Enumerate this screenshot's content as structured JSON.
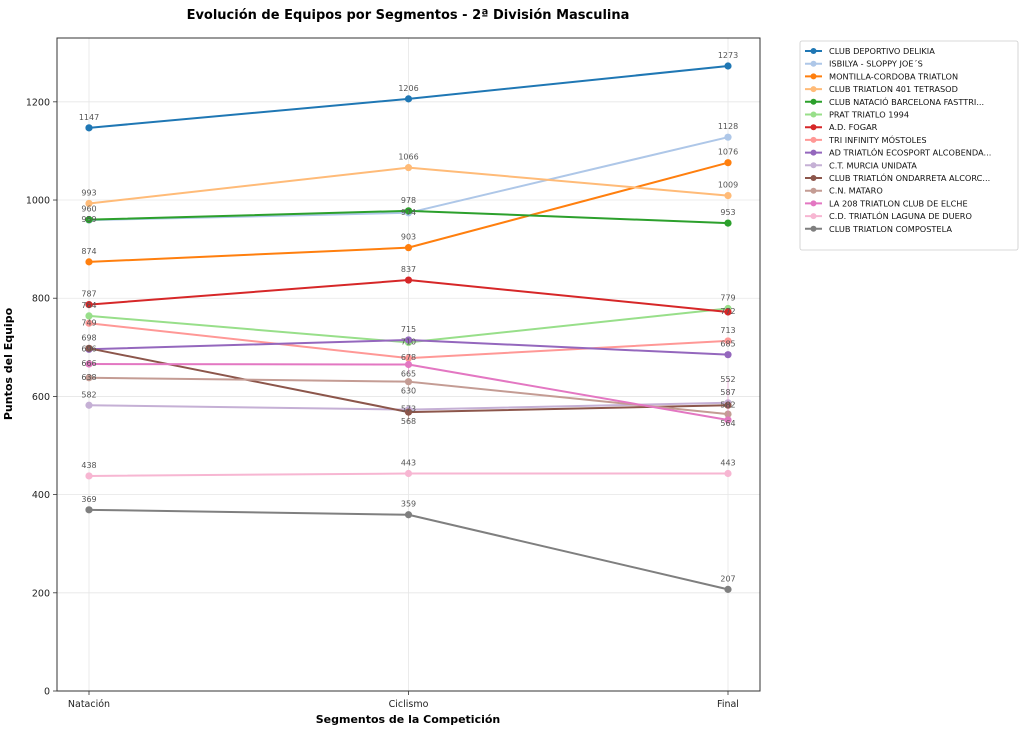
{
  "chart_data": {
    "type": "line",
    "title": "Evolución de Equipos por Segmentos - 2ª División Masculina",
    "xlabel": "Segmentos de la Competición",
    "ylabel": "Puntos del Equipo",
    "categories": [
      "Natación",
      "Ciclismo",
      "Final"
    ],
    "ylim": [
      0,
      1330
    ],
    "yticks": [
      0,
      200,
      400,
      600,
      800,
      1000,
      1200
    ],
    "grid": true,
    "legend_position": "outside-top-right",
    "series": [
      {
        "name": "CLUB DEPORTIVO DELIKIA",
        "color": "#1f77b4",
        "values": [
          1147,
          1206,
          1273
        ]
      },
      {
        "name": "ISBILYA - SLOPPY JOE´S",
        "color": "#aec7e8",
        "values": [
          959,
          974,
          1128
        ]
      },
      {
        "name": "MONTILLA-CORDOBA TRIATLON",
        "color": "#ff7f0e",
        "values": [
          874,
          903,
          1076
        ]
      },
      {
        "name": "CLUB TRIATLON 401 TETRASOD",
        "color": "#ffbb78",
        "values": [
          993,
          1066,
          1009
        ]
      },
      {
        "name": "CLUB NATACIÓ BARCELONA FASTTRI...",
        "color": "#2ca02c",
        "values": [
          960,
          978,
          953
        ]
      },
      {
        "name": "PRAT TRIATLO 1994",
        "color": "#98df8a",
        "values": [
          764,
          710,
          779
        ]
      },
      {
        "name": "A.D. FOGAR",
        "color": "#d62728",
        "values": [
          787,
          837,
          772
        ]
      },
      {
        "name": "TRI INFINITY MÓSTOLES",
        "color": "#ff9896",
        "values": [
          749,
          678,
          713
        ]
      },
      {
        "name": "AD TRIATLÓN ECOSPORT ALCOBENDA...",
        "color": "#9467bd",
        "values": [
          696,
          715,
          685
        ]
      },
      {
        "name": "C.T.  MURCIA UNIDATA",
        "color": "#c5b0d5",
        "values": [
          582,
          573,
          587
        ]
      },
      {
        "name": "CLUB TRIATLÓN ONDARRETA ALCORC...",
        "color": "#8c564b",
        "values": [
          698,
          568,
          582
        ]
      },
      {
        "name": "C.N. MATARO",
        "color": "#c49c94",
        "values": [
          638,
          630,
          564
        ]
      },
      {
        "name": "LA 208 TRIATLON CLUB DE ELCHE",
        "color": "#e377c2",
        "values": [
          666,
          665,
          552
        ]
      },
      {
        "name": "C.D. TRIATLÓN LAGUNA DE DUERO",
        "color": "#f7b6d2",
        "values": [
          438,
          443,
          443
        ]
      },
      {
        "name": "CLUB TRIATLON COMPOSTELA",
        "color": "#7f7f7f",
        "values": [
          369,
          359,
          207
        ]
      }
    ]
  }
}
